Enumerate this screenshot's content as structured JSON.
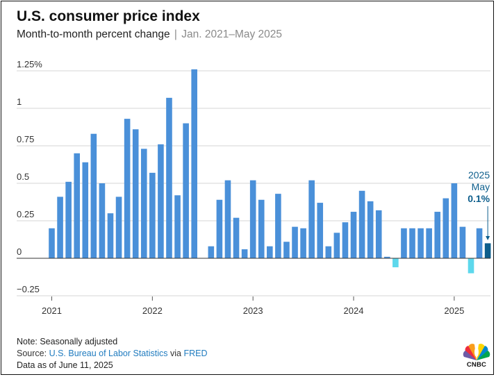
{
  "header": {
    "title": "U.S. consumer price index",
    "subtitle_main": "Month-to-month percent change",
    "subtitle_sep": "|",
    "subtitle_range": "Jan. 2021–May 2025"
  },
  "chart_data": {
    "type": "bar",
    "title": "U.S. consumer price index",
    "subtitle": "Month-to-month percent change | Jan. 2021–May 2025",
    "xlabel": "",
    "ylabel": "",
    "ylim": [
      -0.25,
      1.25
    ],
    "yticks": [
      -0.25,
      0,
      0.25,
      0.5,
      0.75,
      1,
      1.25
    ],
    "ytick_labels": [
      "−0.25",
      "0",
      "0.25",
      "0.5",
      "0.75",
      "1",
      "1.25%"
    ],
    "xtick_labels": [
      "2021",
      "2022",
      "2023",
      "2024",
      "2025"
    ],
    "grid": true,
    "categories": [
      "Jan 2021",
      "Feb 2021",
      "Mar 2021",
      "Apr 2021",
      "May 2021",
      "Jun 2021",
      "Jul 2021",
      "Aug 2021",
      "Sep 2021",
      "Oct 2021",
      "Nov 2021",
      "Dec 2021",
      "Jan 2022",
      "Feb 2022",
      "Mar 2022",
      "Apr 2022",
      "May 2022",
      "Jun 2022",
      "Jul 2022",
      "Aug 2022",
      "Sep 2022",
      "Oct 2022",
      "Nov 2022",
      "Dec 2022",
      "Jan 2023",
      "Feb 2023",
      "Mar 2023",
      "Apr 2023",
      "May 2023",
      "Jun 2023",
      "Jul 2023",
      "Aug 2023",
      "Sep 2023",
      "Oct 2023",
      "Nov 2023",
      "Dec 2023",
      "Jan 2024",
      "Feb 2024",
      "Mar 2024",
      "Apr 2024",
      "May 2024",
      "Jun 2024",
      "Jul 2024",
      "Aug 2024",
      "Sep 2024",
      "Oct 2024",
      "Nov 2024",
      "Dec 2024",
      "Jan 2025",
      "Feb 2025",
      "Mar 2025",
      "Apr 2025",
      "May 2025"
    ],
    "values": [
      0.2,
      0.41,
      0.51,
      0.7,
      0.64,
      0.83,
      0.5,
      0.3,
      0.41,
      0.93,
      0.86,
      0.73,
      0.57,
      0.76,
      1.07,
      0.42,
      0.9,
      1.26,
      0.0,
      0.08,
      0.39,
      0.52,
      0.27,
      0.06,
      0.52,
      0.39,
      0.08,
      0.43,
      0.11,
      0.21,
      0.2,
      0.52,
      0.37,
      0.08,
      0.17,
      0.24,
      0.31,
      0.45,
      0.38,
      0.32,
      0.01,
      -0.06,
      0.2,
      0.2,
      0.2,
      0.2,
      0.31,
      0.4,
      0.5,
      0.21,
      -0.1,
      0.2,
      0.1
    ],
    "colors": {
      "positive": "#4a90d9",
      "negative": "#5dd8ec",
      "highlight": "#0d5e8c"
    },
    "annotation": {
      "year": "2025",
      "month": "May",
      "value": "0.1%"
    }
  },
  "footer": {
    "note": "Note: Seasonally adjusted",
    "source_prefix": "Source:",
    "source_link1": "U.S. Bureau of Labor Statistics",
    "source_via": "via",
    "source_link2": "FRED",
    "data_as_of": "Data as of June 11, 2025"
  },
  "logo": {
    "text": "CNBC",
    "icon": "peacock-icon"
  }
}
